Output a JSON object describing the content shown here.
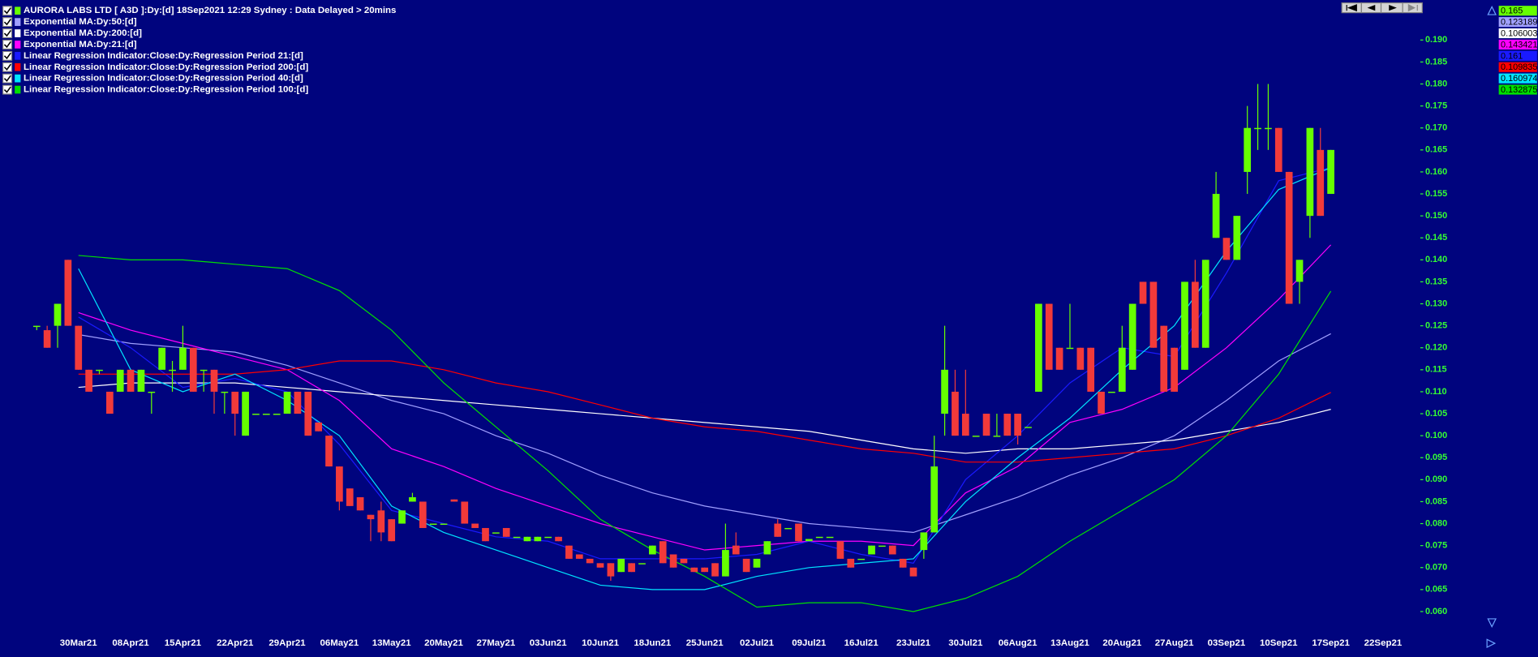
{
  "chart_data": {
    "type": "candlestick",
    "title": "AURORA LABS LTD [ A3D ]:Dy:[d]  18Sep2021 12:29 Sydney : Data Delayed > 20mins",
    "up_color": "#66ff00",
    "down_color": "#f23a3a",
    "ylim": [
      0.055,
      0.198
    ],
    "yticks": [
      {
        "value": 0.06,
        "label": "0.060"
      },
      {
        "value": 0.065,
        "label": "0.065"
      },
      {
        "value": 0.07,
        "label": "0.070"
      },
      {
        "value": 0.075,
        "label": "0.075"
      },
      {
        "value": 0.08,
        "label": "0.080"
      },
      {
        "value": 0.085,
        "label": "0.085"
      },
      {
        "value": 0.09,
        "label": "0.090"
      },
      {
        "value": 0.095,
        "label": "0.095"
      },
      {
        "value": 0.1,
        "label": "0.100"
      },
      {
        "value": 0.105,
        "label": "0.105"
      },
      {
        "value": 0.11,
        "label": "0.110"
      },
      {
        "value": 0.115,
        "label": "0.115"
      },
      {
        "value": 0.12,
        "label": "0.120"
      },
      {
        "value": 0.125,
        "label": "0.125"
      },
      {
        "value": 0.13,
        "label": "0.130"
      },
      {
        "value": 0.135,
        "label": "0.135"
      },
      {
        "value": 0.14,
        "label": "0.140"
      },
      {
        "value": 0.145,
        "label": "0.145"
      },
      {
        "value": 0.15,
        "label": "0.150"
      },
      {
        "value": 0.155,
        "label": "0.155"
      },
      {
        "value": 0.16,
        "label": "0.160"
      },
      {
        "value": 0.165,
        "label": "0.165"
      },
      {
        "value": 0.17,
        "label": "0.170"
      },
      {
        "value": 0.175,
        "label": "0.175"
      },
      {
        "value": 0.18,
        "label": "0.180"
      },
      {
        "value": 0.185,
        "label": "0.185"
      },
      {
        "value": 0.19,
        "label": "0.190"
      }
    ],
    "xticks": [
      "30Mar21",
      "08Apr21",
      "15Apr21",
      "22Apr21",
      "29Apr21",
      "06May21",
      "13May21",
      "20May21",
      "27May21",
      "03Jun21",
      "10Jun21",
      "18Jun21",
      "25Jun21",
      "02Jul21",
      "09Jul21",
      "16Jul21",
      "23Jul21",
      "30Jul21",
      "06Aug21",
      "13Aug21",
      "20Aug21",
      "27Aug21",
      "03Sep21",
      "10Sep21",
      "17Sep21",
      "22Sep21"
    ],
    "ohlc": [
      [
        0.125,
        0.125,
        0.124,
        0.125
      ],
      [
        0.124,
        0.125,
        0.12,
        0.12
      ],
      [
        0.125,
        0.13,
        0.12,
        0.13
      ],
      [
        0.14,
        0.14,
        0.125,
        0.125
      ],
      [
        0.125,
        0.125,
        0.115,
        0.115
      ],
      [
        0.115,
        0.115,
        0.11,
        0.11
      ],
      [
        0.115,
        0.115,
        0.114,
        0.115
      ],
      [
        0.11,
        0.11,
        0.105,
        0.105
      ],
      [
        0.11,
        0.115,
        0.11,
        0.115
      ],
      [
        0.115,
        0.115,
        0.11,
        0.11
      ],
      [
        0.11,
        0.115,
        0.11,
        0.115
      ],
      [
        0.11,
        0.11,
        0.105,
        0.11
      ],
      [
        0.115,
        0.12,
        0.115,
        0.12
      ],
      [
        0.115,
        0.117,
        0.11,
        0.115
      ],
      [
        0.115,
        0.125,
        0.115,
        0.12
      ],
      [
        0.12,
        0.12,
        0.11,
        0.11
      ],
      [
        0.115,
        0.115,
        0.11,
        0.115
      ],
      [
        0.115,
        0.115,
        0.105,
        0.11
      ],
      [
        0.11,
        0.11,
        0.105,
        0.11
      ],
      [
        0.11,
        0.11,
        0.1,
        0.105
      ],
      [
        0.1,
        0.11,
        0.1,
        0.11
      ],
      [
        0.105,
        0.105,
        0.105,
        0.105
      ],
      [
        0.105,
        0.105,
        0.105,
        0.105
      ],
      [
        0.105,
        0.105,
        0.105,
        0.105
      ],
      [
        0.105,
        0.11,
        0.105,
        0.11
      ],
      [
        0.11,
        0.11,
        0.105,
        0.105
      ],
      [
        0.11,
        0.11,
        0.1,
        0.1
      ],
      [
        0.103,
        0.103,
        0.101,
        0.101
      ],
      [
        0.1,
        0.1,
        0.093,
        0.093
      ],
      [
        0.093,
        0.093,
        0.083,
        0.085
      ],
      [
        0.088,
        0.088,
        0.084,
        0.084
      ],
      [
        0.086,
        0.086,
        0.083,
        0.083
      ],
      [
        0.082,
        0.082,
        0.076,
        0.081
      ],
      [
        0.083,
        0.085,
        0.076,
        0.078
      ],
      [
        0.081,
        0.081,
        0.076,
        0.076
      ],
      [
        0.08,
        0.083,
        0.08,
        0.083
      ],
      [
        0.085,
        0.087,
        0.085,
        0.086
      ],
      [
        0.085,
        0.085,
        0.079,
        0.079
      ],
      [
        0.08,
        0.08,
        0.08,
        0.08
      ],
      [
        0.08,
        0.08,
        0.08,
        0.08
      ],
      [
        0.0855,
        0.0855,
        0.085,
        0.085
      ],
      [
        0.085,
        0.085,
        0.08,
        0.08
      ],
      [
        0.08,
        0.08,
        0.079,
        0.079
      ],
      [
        0.079,
        0.079,
        0.076,
        0.076
      ],
      [
        0.078,
        0.078,
        0.078,
        0.078
      ],
      [
        0.079,
        0.079,
        0.077,
        0.077
      ],
      [
        0.077,
        0.077,
        0.077,
        0.077
      ],
      [
        0.076,
        0.077,
        0.076,
        0.077
      ],
      [
        0.076,
        0.077,
        0.076,
        0.077
      ],
      [
        0.077,
        0.077,
        0.077,
        0.077
      ],
      [
        0.077,
        0.077,
        0.076,
        0.076
      ],
      [
        0.075,
        0.075,
        0.072,
        0.072
      ],
      [
        0.073,
        0.073,
        0.072,
        0.072
      ],
      [
        0.072,
        0.072,
        0.071,
        0.071
      ],
      [
        0.071,
        0.071,
        0.07,
        0.07
      ],
      [
        0.071,
        0.071,
        0.067,
        0.068
      ],
      [
        0.069,
        0.072,
        0.069,
        0.072
      ],
      [
        0.071,
        0.071,
        0.069,
        0.069
      ],
      [
        0.071,
        0.071,
        0.071,
        0.071
      ],
      [
        0.073,
        0.075,
        0.073,
        0.075
      ],
      [
        0.076,
        0.076,
        0.071,
        0.071
      ],
      [
        0.073,
        0.073,
        0.07,
        0.07
      ],
      [
        0.072,
        0.072,
        0.071,
        0.071
      ],
      [
        0.07,
        0.07,
        0.069,
        0.069
      ],
      [
        0.07,
        0.07,
        0.069,
        0.069
      ],
      [
        0.071,
        0.071,
        0.068,
        0.068
      ],
      [
        0.068,
        0.08,
        0.068,
        0.074
      ],
      [
        0.075,
        0.078,
        0.073,
        0.073
      ],
      [
        0.072,
        0.072,
        0.069,
        0.069
      ],
      [
        0.07,
        0.072,
        0.07,
        0.072
      ],
      [
        0.073,
        0.076,
        0.073,
        0.076
      ],
      [
        0.08,
        0.081,
        0.077,
        0.077
      ],
      [
        0.079,
        0.079,
        0.079,
        0.079
      ],
      [
        0.08,
        0.08,
        0.076,
        0.076
      ],
      [
        0.076,
        0.0765,
        0.076,
        0.0765
      ],
      [
        0.077,
        0.077,
        0.077,
        0.077
      ],
      [
        0.077,
        0.077,
        0.077,
        0.077
      ],
      [
        0.076,
        0.076,
        0.072,
        0.072
      ],
      [
        0.072,
        0.072,
        0.07,
        0.07
      ],
      [
        0.072,
        0.072,
        0.072,
        0.072
      ],
      [
        0.073,
        0.075,
        0.073,
        0.075
      ],
      [
        0.075,
        0.075,
        0.075,
        0.075
      ],
      [
        0.075,
        0.075,
        0.073,
        0.073
      ],
      [
        0.072,
        0.072,
        0.07,
        0.07
      ],
      [
        0.07,
        0.07,
        0.068,
        0.068
      ],
      [
        0.074,
        0.078,
        0.072,
        0.078
      ],
      [
        0.078,
        0.1,
        0.078,
        0.093
      ],
      [
        0.105,
        0.125,
        0.1,
        0.115
      ],
      [
        0.11,
        0.115,
        0.1,
        0.1
      ],
      [
        0.105,
        0.115,
        0.1,
        0.1
      ],
      [
        0.1,
        0.1,
        0.1,
        0.1
      ],
      [
        0.105,
        0.105,
        0.1,
        0.1
      ],
      [
        0.1,
        0.105,
        0.1,
        0.1
      ],
      [
        0.105,
        0.105,
        0.1,
        0.1
      ],
      [
        0.105,
        0.105,
        0.098,
        0.1
      ],
      [
        0.102,
        0.102,
        0.102,
        0.102
      ],
      [
        0.11,
        0.13,
        0.11,
        0.13
      ],
      [
        0.13,
        0.13,
        0.115,
        0.115
      ],
      [
        0.12,
        0.12,
        0.115,
        0.115
      ],
      [
        0.12,
        0.13,
        0.12,
        0.12
      ],
      [
        0.12,
        0.12,
        0.115,
        0.115
      ],
      [
        0.12,
        0.12,
        0.11,
        0.11
      ],
      [
        0.11,
        0.11,
        0.105,
        0.105
      ],
      [
        0.11,
        0.11,
        0.11,
        0.11
      ],
      [
        0.11,
        0.125,
        0.11,
        0.12
      ],
      [
        0.115,
        0.13,
        0.115,
        0.13
      ],
      [
        0.135,
        0.135,
        0.13,
        0.13
      ],
      [
        0.135,
        0.135,
        0.12,
        0.12
      ],
      [
        0.125,
        0.125,
        0.11,
        0.11
      ],
      [
        0.12,
        0.12,
        0.11,
        0.11
      ],
      [
        0.115,
        0.135,
        0.115,
        0.135
      ],
      [
        0.135,
        0.14,
        0.12,
        0.12
      ],
      [
        0.12,
        0.14,
        0.12,
        0.14
      ],
      [
        0.145,
        0.16,
        0.145,
        0.155
      ],
      [
        0.145,
        0.145,
        0.14,
        0.14
      ],
      [
        0.14,
        0.15,
        0.14,
        0.15
      ],
      [
        0.16,
        0.175,
        0.155,
        0.17
      ],
      [
        0.17,
        0.18,
        0.165,
        0.17
      ],
      [
        0.17,
        0.18,
        0.165,
        0.17
      ],
      [
        0.17,
        0.17,
        0.16,
        0.16
      ],
      [
        0.16,
        0.16,
        0.13,
        0.13
      ],
      [
        0.135,
        0.14,
        0.13,
        0.14
      ],
      [
        0.15,
        0.17,
        0.145,
        0.17
      ],
      [
        0.165,
        0.17,
        0.15,
        0.15
      ],
      [
        0.155,
        0.165,
        0.155,
        0.165
      ]
    ],
    "series": [
      {
        "name": "Exponential MA:Dy:50:[d]",
        "color": "#a0a0ff",
        "values": [
          0.123,
          0.121,
          0.12,
          0.119,
          0.116,
          0.112,
          0.108,
          0.105,
          0.1,
          0.096,
          0.091,
          0.087,
          0.084,
          0.082,
          0.08,
          0.079,
          0.078,
          0.082,
          0.086,
          0.091,
          0.095,
          0.1,
          0.108,
          0.117,
          0.123189
        ]
      },
      {
        "name": "Exponential MA:Dy:200:[d]",
        "color": "#ffffff",
        "values": [
          0.111,
          0.112,
          0.112,
          0.112,
          0.111,
          0.11,
          0.109,
          0.108,
          0.107,
          0.106,
          0.105,
          0.104,
          0.103,
          0.102,
          0.101,
          0.099,
          0.097,
          0.096,
          0.097,
          0.097,
          0.098,
          0.099,
          0.101,
          0.103,
          0.106003
        ]
      },
      {
        "name": "Exponential MA:Dy:21:[d]",
        "color": "#ff00ff",
        "values": [
          0.128,
          0.124,
          0.121,
          0.118,
          0.115,
          0.108,
          0.097,
          0.093,
          0.088,
          0.084,
          0.08,
          0.077,
          0.074,
          0.075,
          0.076,
          0.076,
          0.075,
          0.087,
          0.093,
          0.103,
          0.106,
          0.111,
          0.12,
          0.131,
          0.143421
        ]
      },
      {
        "name": "Linear Regression Indicator:Close:Dy:Regression Period 21:[d]",
        "color": "#1a1aff",
        "values": [
          0.127,
          0.12,
          0.111,
          0.113,
          0.11,
          0.098,
          0.083,
          0.08,
          0.077,
          0.076,
          0.072,
          0.072,
          0.072,
          0.073,
          0.076,
          0.073,
          0.071,
          0.09,
          0.1,
          0.112,
          0.12,
          0.118,
          0.137,
          0.158,
          0.161
        ]
      },
      {
        "name": "Linear Regression Indicator:Close:Dy:Regression Period 200:[d]",
        "color": "#ff0000",
        "values": [
          0.114,
          0.114,
          0.114,
          0.114,
          0.115,
          0.117,
          0.117,
          0.115,
          0.112,
          0.11,
          0.107,
          0.104,
          0.102,
          0.101,
          0.099,
          0.097,
          0.096,
          0.094,
          0.094,
          0.095,
          0.096,
          0.097,
          0.1,
          0.104,
          0.109835
        ]
      },
      {
        "name": "Linear Regression Indicator:Close:Dy:Regression Period 40:[d]",
        "color": "#00e5ff",
        "values": [
          0.138,
          0.115,
          0.11,
          0.114,
          0.108,
          0.1,
          0.084,
          0.078,
          0.074,
          0.07,
          0.066,
          0.065,
          0.065,
          0.068,
          0.07,
          0.071,
          0.072,
          0.085,
          0.095,
          0.104,
          0.115,
          0.125,
          0.142,
          0.156,
          0.160974
        ]
      },
      {
        "name": "Linear Regression Indicator:Close:Dy:Regression Period 100:[d]",
        "color": "#00e000",
        "values": [
          0.141,
          0.14,
          0.14,
          0.139,
          0.138,
          0.133,
          0.124,
          0.112,
          0.102,
          0.092,
          0.081,
          0.074,
          0.068,
          0.061,
          0.062,
          0.062,
          0.06,
          0.063,
          0.068,
          0.076,
          0.083,
          0.09,
          0.1,
          0.114,
          0.132875
        ]
      }
    ]
  }
}
